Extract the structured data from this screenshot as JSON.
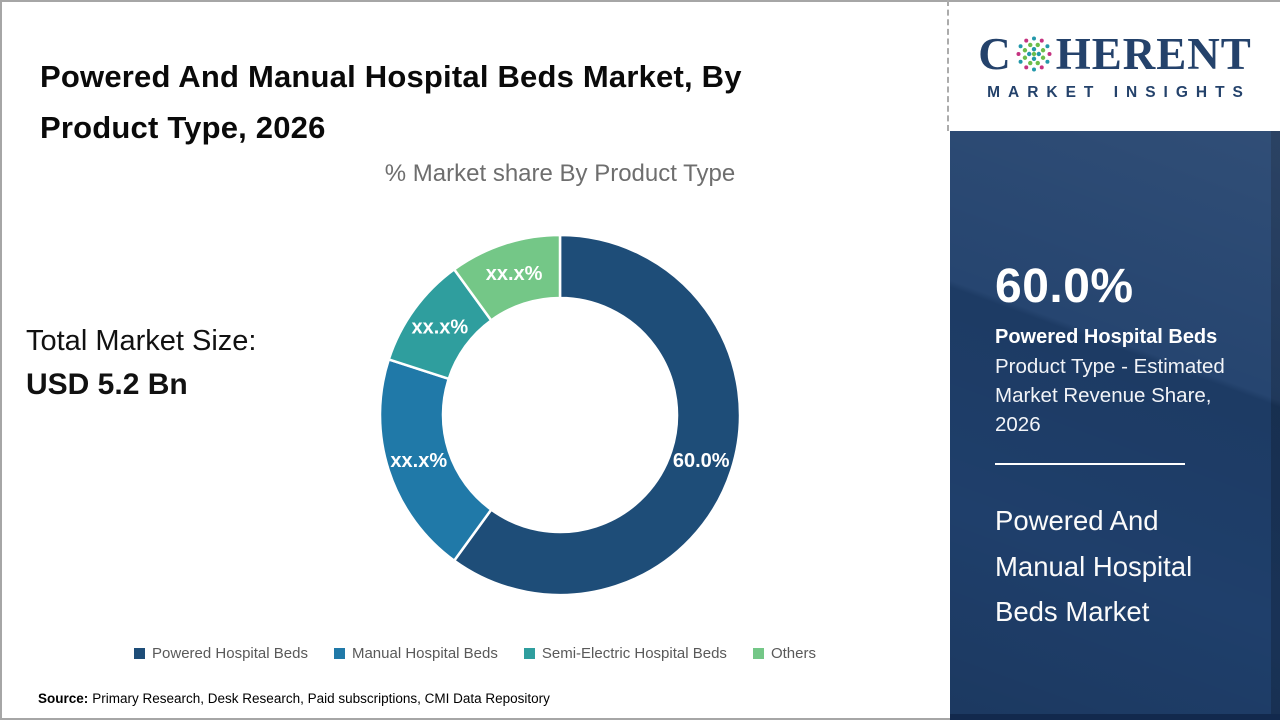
{
  "header": {
    "title_line1": "Powered And Manual Hospital Beds Market, By",
    "title_line2": "Product Type, 2026"
  },
  "brand": {
    "name_prefix": "C",
    "name_suffix": "HERENT",
    "tagline": "MARKET INSIGHTS",
    "navy": "#24426b",
    "globe_dot_colors": {
      "outer_a": "#c53380",
      "outer_b": "#2398aa",
      "inner": "#6dbe4b",
      "core": "#2398aa"
    }
  },
  "main": {
    "total_market_label": "Total Market Size:",
    "total_market_value": "USD 5.2 Bn"
  },
  "chart_data": {
    "type": "pie",
    "subtype": "donut",
    "title": "% Market share By Product Type",
    "unit": "%",
    "start_angle_deg": 0,
    "direction": "clockwise",
    "hole_ratio": 0.65,
    "legend_position": "bottom",
    "segments": [
      {
        "name": "Powered Hospital Beds",
        "value": 60.0,
        "display_label": "60.0%",
        "color": "#1e4d78"
      },
      {
        "name": "Manual Hospital Beds",
        "value": 20.0,
        "display_label": "xx.x%",
        "color": "#2079a8"
      },
      {
        "name": "Semi-Electric Hospital Beds",
        "value": 10.0,
        "display_label": "xx.x%",
        "color": "#2f9e9e"
      },
      {
        "name": "Others",
        "value": 10.0,
        "display_label": "xx.x%",
        "color": "#74c787"
      }
    ]
  },
  "sidebar": {
    "stat_value": "60.0%",
    "stat_label_bold": "Powered Hospital Beds",
    "stat_label_rest": "Product Type - Estimated Market Revenue Share, 2026",
    "market_name": "Powered And Manual Hospital Beds Market"
  },
  "footer": {
    "source_label": "Source:",
    "source_text": "Primary Research, Desk Research, Paid subscriptions, CMI Data Repository"
  }
}
